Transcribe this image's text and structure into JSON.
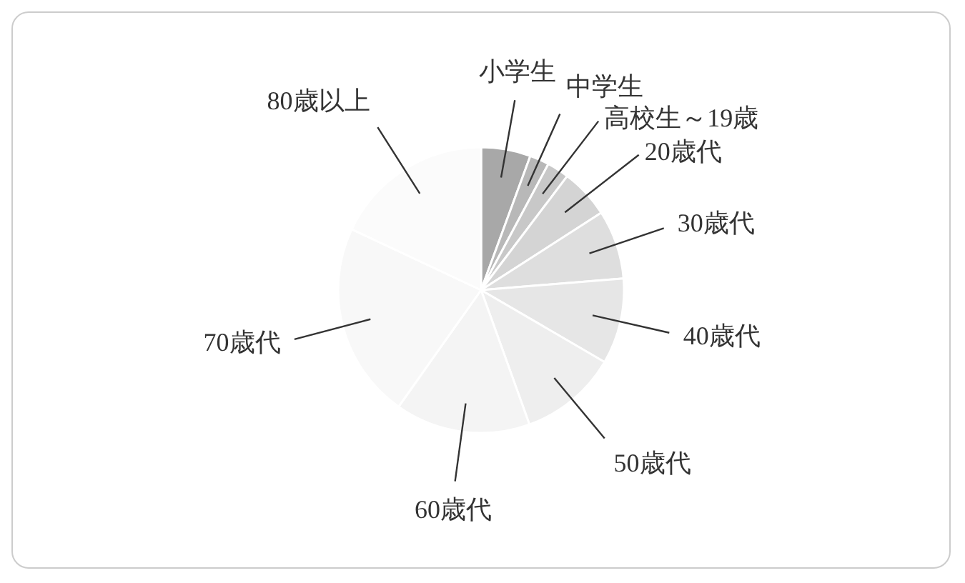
{
  "chart_data": {
    "type": "pie",
    "categories": [
      "小学生",
      "中学生",
      "高校生～19歳",
      "20歳代",
      "30歳代",
      "40歳代",
      "50歳代",
      "60歳代",
      "70歳代",
      "80歳以上"
    ],
    "values": [
      5.6,
      2.2,
      2.5,
      5.6,
      7.8,
      9.7,
      11.1,
      15.3,
      22.2,
      18.0
    ],
    "colors": [
      "#a8a8a8",
      "#b8b8b8",
      "#c8c8c8",
      "#d4d4d4",
      "#dedede",
      "#e6e6e6",
      "#eeeeee",
      "#f4f4f4",
      "#f8f8f8",
      "#fbfbfb"
    ]
  }
}
